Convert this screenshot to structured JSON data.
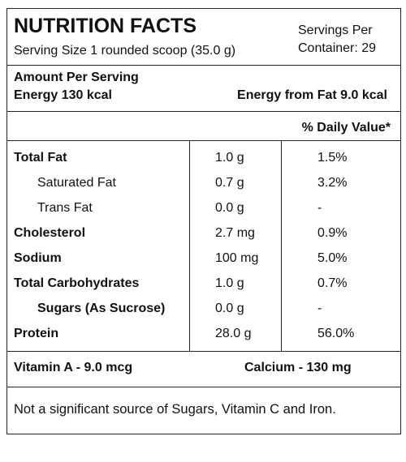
{
  "header": {
    "title": "NUTRITION FACTS",
    "serving_size": "Serving Size 1 rounded scoop (35.0 g)",
    "servings_per": [
      "Servings Per",
      "Container: 29"
    ]
  },
  "amount": {
    "label": "Amount Per Serving",
    "energy": "Energy 130 kcal",
    "energy_from_fat": "Energy from Fat 9.0 kcal"
  },
  "daily_value_header": "% Daily Value*",
  "table": {
    "rows": [
      [
        "Total Fat",
        "1.0 g",
        "1.5%"
      ],
      [
        "Saturated Fat",
        "0.7 g",
        "3.2%"
      ],
      [
        "Trans Fat",
        "0.0 g",
        "-"
      ],
      [
        "Cholesterol",
        "2.7 mg",
        "0.9%"
      ],
      [
        "Sodium",
        "100 mg",
        "5.0%"
      ],
      [
        "Total Carbohydrates",
        "1.0 g",
        "0.7%"
      ],
      [
        "Sugars (As Sucrose)",
        "0.0 g",
        "-"
      ],
      [
        "Protein",
        "28.0 g",
        "56.0%"
      ]
    ]
  },
  "vitamins": [
    "Vitamin A - 9.0 mcg",
    "Calcium - 130 mg"
  ],
  "footnote": "Not a significant source of Sugars, Vitamin C and Iron."
}
